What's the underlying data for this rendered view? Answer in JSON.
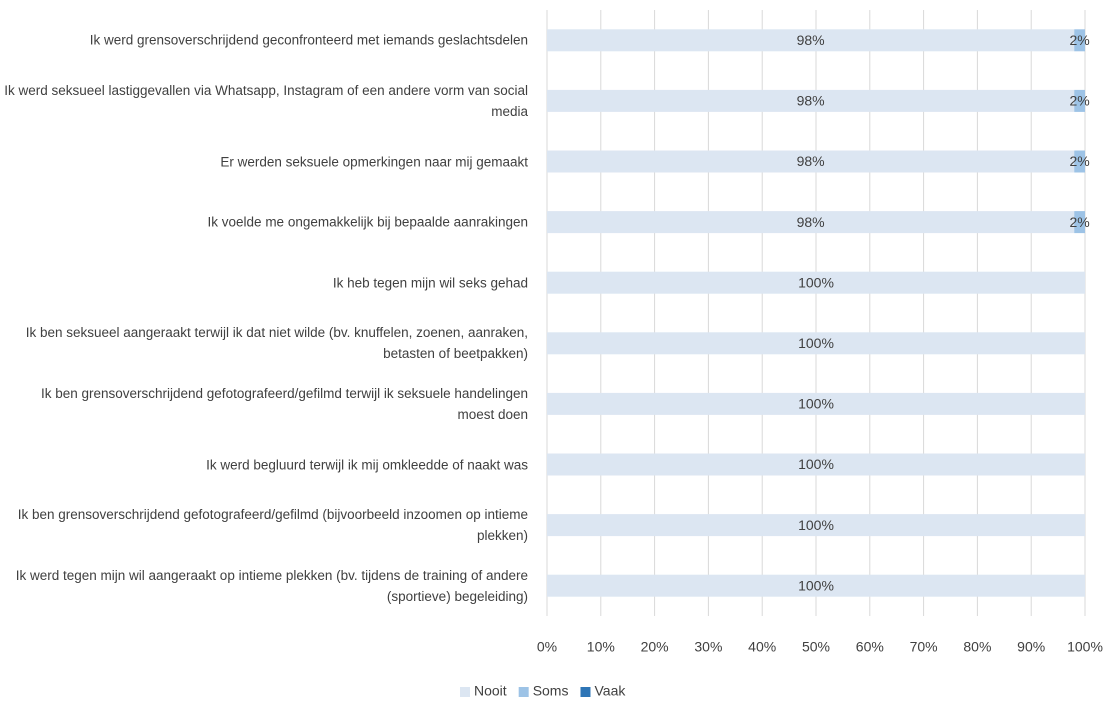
{
  "chart_data": {
    "type": "stacked-bar-horizontal",
    "categories": [
      "Ik werd grensoverschrijdend geconfronteerd met iemands geslachtsdelen",
      "Ik werd seksueel lastiggevallen via Whatsapp, Instagram of een andere vorm van social media",
      "Er werden seksuele opmerkingen naar mij gemaakt",
      "Ik voelde me ongemakkelijk bij bepaalde aanrakingen",
      "Ik heb tegen mijn wil seks gehad",
      "Ik ben seksueel aangeraakt terwijl ik dat niet wilde (bv. knuffelen, zoenen, aanraken, betasten of beetpakken)",
      "Ik ben grensoverschrijdend gefotografeerd/gefilmd terwijl ik seksuele handelingen moest doen",
      "Ik werd begluurd terwijl ik mij omkleedde of naakt was",
      "Ik ben grensoverschrijdend gefotografeerd/gefilmd (bijvoorbeeld inzoomen op intieme plekken)",
      "Ik werd tegen mijn wil aangeraakt op intieme plekken (bv. tijdens de training of andere (sportieve) begeleiding)"
    ],
    "series": [
      {
        "name": "Nooit",
        "color": "#dce6f2",
        "values": [
          98,
          98,
          98,
          98,
          100,
          100,
          100,
          100,
          100,
          100
        ],
        "value_labels": [
          "98%",
          "98%",
          "98%",
          "98%",
          "100%",
          "100%",
          "100%",
          "100%",
          "100%",
          "100%"
        ]
      },
      {
        "name": "Soms",
        "color": "#9dc3e6",
        "values": [
          2,
          2,
          2,
          2,
          0,
          0,
          0,
          0,
          0,
          0
        ],
        "value_labels": [
          "2%",
          "2%",
          "2%",
          "2%",
          null,
          null,
          null,
          null,
          null,
          null
        ]
      },
      {
        "name": "Vaak",
        "color": "#2e75b6",
        "values": [
          0,
          0,
          0,
          0,
          0,
          0,
          0,
          0,
          0,
          0
        ],
        "value_labels": [
          null,
          null,
          null,
          null,
          null,
          null,
          null,
          null,
          null,
          null
        ]
      }
    ],
    "xlim": [
      0,
      100
    ],
    "xticks": [
      {
        "value": 0,
        "label": "0%"
      },
      {
        "value": 10,
        "label": "10%"
      },
      {
        "value": 20,
        "label": "20%"
      },
      {
        "value": 30,
        "label": "30%"
      },
      {
        "value": 40,
        "label": "40%"
      },
      {
        "value": 50,
        "label": "50%"
      },
      {
        "value": 60,
        "label": "60%"
      },
      {
        "value": 70,
        "label": "70%"
      },
      {
        "value": 80,
        "label": "80%"
      },
      {
        "value": 90,
        "label": "90%"
      },
      {
        "value": 100,
        "label": "100%"
      }
    ],
    "grid": true,
    "legend": "bottom"
  }
}
